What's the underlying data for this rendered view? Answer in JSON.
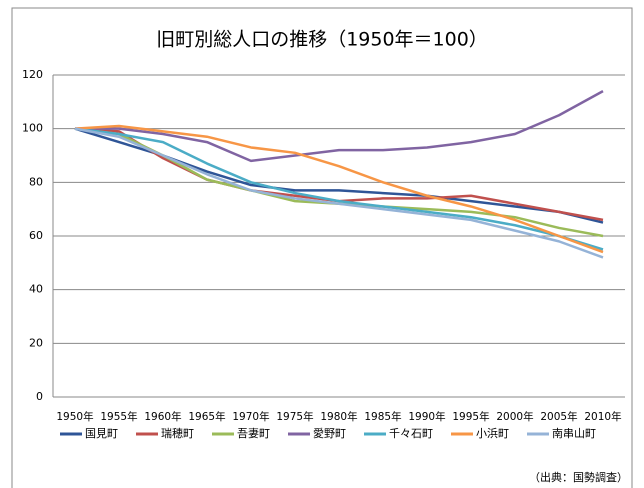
{
  "chart_data": {
    "type": "line",
    "title": "旧町別総人口の推移（1950年＝100）",
    "note": "（出典：国勢調査）",
    "categories": [
      "1950年",
      "1955年",
      "1960年",
      "1965年",
      "1970年",
      "1975年",
      "1980年",
      "1985年",
      "1990年",
      "1995年",
      "2000年",
      "2005年",
      "2010年"
    ],
    "series": [
      {
        "name": "国見町",
        "color": "#2f5597",
        "values": [
          100,
          95,
          90,
          84,
          79,
          77,
          77,
          76,
          75,
          73,
          71,
          69,
          65
        ]
      },
      {
        "name": "瑞穂町",
        "color": "#c0504d",
        "values": [
          100,
          99,
          89,
          81,
          77,
          75,
          73,
          74,
          74,
          75,
          72,
          69,
          66
        ]
      },
      {
        "name": "吾妻町",
        "color": "#9bbb59",
        "values": [
          100,
          98,
          90,
          81,
          77,
          73,
          72,
          71,
          70,
          69,
          67,
          63,
          60
        ]
      },
      {
        "name": "愛野町",
        "color": "#8064a2",
        "values": [
          100,
          100,
          98,
          95,
          88,
          90,
          92,
          92,
          93,
          95,
          98,
          105,
          114
        ]
      },
      {
        "name": "千々石町",
        "color": "#4bacc6",
        "values": [
          100,
          98,
          95,
          87,
          80,
          76,
          73,
          71,
          69,
          67,
          64,
          60,
          55
        ]
      },
      {
        "name": "小浜町",
        "color": "#f79646",
        "values": [
          100,
          101,
          99,
          97,
          93,
          91,
          86,
          80,
          75,
          71,
          66,
          60,
          54
        ]
      },
      {
        "name": "南串山町",
        "color": "#95b3d7",
        "values": [
          100,
          97,
          90,
          83,
          77,
          74,
          72,
          70,
          68,
          66,
          62,
          58,
          52
        ]
      }
    ],
    "ylim": [
      0,
      120
    ],
    "yticks": [
      0,
      20,
      40,
      60,
      80,
      100,
      120
    ],
    "grid": true
  }
}
